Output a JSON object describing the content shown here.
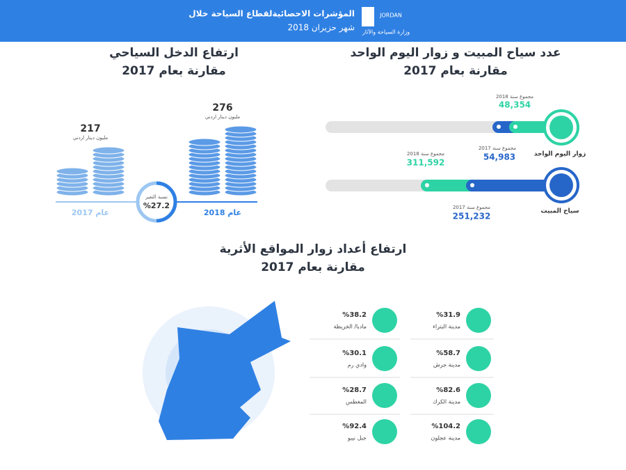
{
  "header": {
    "title": "المؤشرات الاحصائيةلقطاع السياحة خلال",
    "subtitle": "شهر حزيران 2018",
    "logo_text": "JORDAN",
    "ministry": "وزارة السياحة والآثار"
  },
  "income": {
    "title": "ارتفاع الدخل السياحي",
    "subtitle": "مقارنة بعام 2017",
    "value_2017": "217",
    "unit_2017": "مليون دينار اردني",
    "label_2017": "عام 2017",
    "value_2018": "276",
    "unit_2018": "مليون دينار اردني",
    "label_2018": "عام 2018",
    "change_label": "نسبة التغير",
    "change": "%27.2"
  },
  "visitors": {
    "title": "عدد سياح المبيت و زوار اليوم الواحد",
    "subtitle": "مقارنة بعام 2017",
    "rows": [
      {
        "label": "زوار اليوم الواحد",
        "label_2018": "مجموع سنة 2018",
        "value_2018": "48,354",
        "label_2017": "مجموع سنة 2017",
        "value_2017": "54,983"
      },
      {
        "label": "سياح المبيت",
        "label_2018": "مجموع سنة 2018",
        "value_2018": "311,592",
        "label_2017": "مجموع سنة 2017",
        "value_2017": "251,232"
      }
    ]
  },
  "sites": {
    "title": "ارتفاع أعداد زوار المواقع الأثرية",
    "subtitle": "مقارنة بعام 2017",
    "items": [
      {
        "value": "%31.9",
        "name": "مدينة البتراء"
      },
      {
        "value": "%38.2",
        "name": "مادبا/ الخريطة"
      },
      {
        "value": "%58.7",
        "name": "مدينة جرش"
      },
      {
        "value": "%30.1",
        "name": "وادي رم"
      },
      {
        "value": "%82.6",
        "name": "مدينة الكرك"
      },
      {
        "value": "%28.7",
        "name": "المغطس"
      },
      {
        "value": "%104.2",
        "name": "مدينة عجلون"
      },
      {
        "value": "%92.4",
        "name": "جبل نيبو"
      }
    ]
  }
}
